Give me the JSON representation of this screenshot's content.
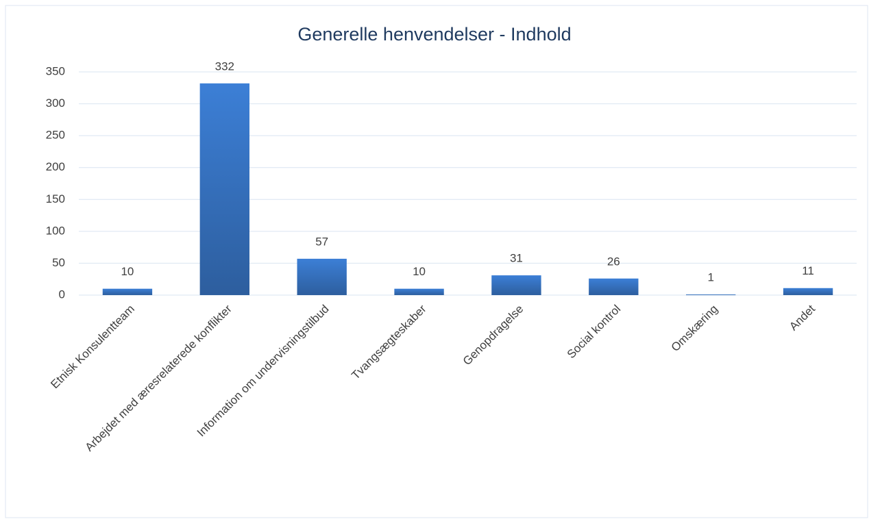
{
  "chart_data": {
    "type": "bar",
    "title": "Generelle henvendelser - Indhold",
    "categories": [
      "Etnisk Konsulentteam",
      "Arbejdet med æresrelaterede konflikter",
      "Information om undervisningstilbud",
      "Tvangsægteskaber",
      "Genopdragelse",
      "Social kontrol",
      "Omskæring",
      "Andet"
    ],
    "values": [
      10,
      332,
      57,
      10,
      31,
      26,
      1,
      11
    ],
    "color": "#3b73bf",
    "ylim": [
      0,
      350
    ],
    "yticks": [
      0,
      50,
      100,
      150,
      200,
      250,
      300,
      350
    ],
    "grid": true
  }
}
